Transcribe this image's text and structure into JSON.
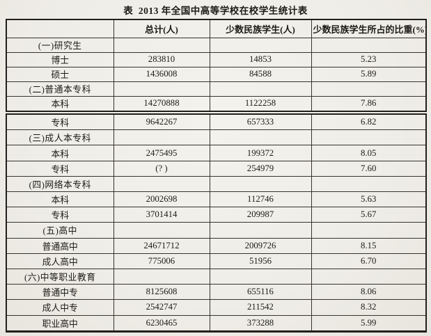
{
  "page": {
    "title": "表  2013 年全国中高等学校在校学生统计表"
  },
  "header": {
    "c0": "",
    "c1": "总计(人)",
    "c2": "少数民族学生(人)",
    "c3": "少数民族学生所占的比重(%)"
  },
  "block1": {
    "rows": [
      {
        "c0": "(一)研究生",
        "c1": "",
        "c2": "",
        "c3": ""
      },
      {
        "c0": "博士",
        "c1": "283810",
        "c2": "14853",
        "c3": "5.23"
      },
      {
        "c0": "硕士",
        "c1": "1436008",
        "c2": "84588",
        "c3": "5.89"
      },
      {
        "c0": "(二)普通本专科",
        "c1": "",
        "c2": "",
        "c3": ""
      },
      {
        "c0": "本科",
        "c1": "14270888",
        "c2": "1122258",
        "c3": "7.86"
      }
    ]
  },
  "block2": {
    "rows": [
      {
        "c0": "专科",
        "c1": "9642267",
        "c2": "657333",
        "c3": "6.82"
      },
      {
        "c0": "(三)成人本专科",
        "c1": "",
        "c2": "",
        "c3": ""
      },
      {
        "c0": "本科",
        "c1": "2475495",
        "c2": "199372",
        "c3": "8.05"
      },
      {
        "c0": "专科",
        "c1": "(? )",
        "c2": "254979",
        "c3": "7.60"
      },
      {
        "c0": "(四)网络本专科",
        "c1": "",
        "c2": "",
        "c3": ""
      },
      {
        "c0": "本科",
        "c1": "2002698",
        "c2": "112746",
        "c3": "5.63"
      },
      {
        "c0": "专科",
        "c1": "3701414",
        "c2": "209987",
        "c3": "5.67"
      },
      {
        "c0": "(五)高中",
        "c1": "",
        "c2": "",
        "c3": ""
      },
      {
        "c0": "普通高中",
        "c1": "24671712",
        "c2": "2009726",
        "c3": "8.15"
      },
      {
        "c0": "成人高中",
        "c1": "775006",
        "c2": "51956",
        "c3": "6.70"
      },
      {
        "c0": "(六)中等职业教育",
        "c1": "",
        "c2": "",
        "c3": ""
      },
      {
        "c0": "普通中专",
        "c1": "8125608",
        "c2": "655116",
        "c3": "8.06"
      },
      {
        "c0": "成人中专",
        "c1": "2542747",
        "c2": "211542",
        "c3": "8.32"
      },
      {
        "c0": "职业高中",
        "c1": "6230465",
        "c2": "373288",
        "c3": "5.99"
      }
    ]
  },
  "chart_data": {
    "type": "table",
    "title": "表 2013 年全国中高等学校在校学生统计表",
    "columns": [
      "",
      "总计(人)",
      "少数民族学生(人)",
      "少数民族学生所占的比重(%)"
    ],
    "rows": [
      [
        "(一)研究生",
        "",
        "",
        ""
      ],
      [
        "博士",
        283810,
        14853,
        5.23
      ],
      [
        "硕士",
        1436008,
        84588,
        5.89
      ],
      [
        "(二)普通本专科",
        "",
        "",
        ""
      ],
      [
        "本科",
        14270888,
        1122258,
        7.86
      ],
      [
        "专科",
        9642267,
        657333,
        6.82
      ],
      [
        "(三)成人本专科",
        "",
        "",
        ""
      ],
      [
        "本科",
        2475495,
        199372,
        8.05
      ],
      [
        "专科",
        "(? )",
        254979,
        7.6
      ],
      [
        "(四)网络本专科",
        "",
        "",
        ""
      ],
      [
        "本科",
        2002698,
        112746,
        5.63
      ],
      [
        "专科",
        3701414,
        209987,
        5.67
      ],
      [
        "(五)高中",
        "",
        "",
        ""
      ],
      [
        "普通高中",
        24671712,
        2009726,
        8.15
      ],
      [
        "成人高中",
        775006,
        51956,
        6.7
      ],
      [
        "(六)中等职业教育",
        "",
        "",
        ""
      ],
      [
        "普通中专",
        8125608,
        655116,
        8.06
      ],
      [
        "成人中专",
        2542747,
        211542,
        8.32
      ],
      [
        "职业高中",
        6230465,
        373288,
        5.99
      ]
    ]
  }
}
